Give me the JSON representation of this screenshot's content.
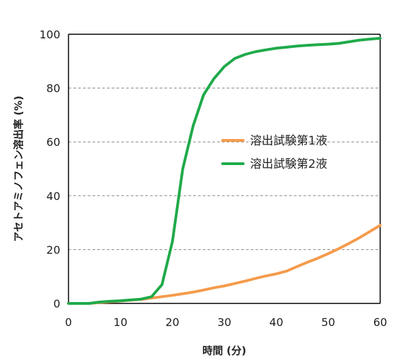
{
  "chart_data": {
    "type": "line",
    "title": "",
    "xlabel": "時間 (分)",
    "ylabel": "アセトアミノフェン溶出率 (%)",
    "xlim": [
      0,
      60
    ],
    "ylim": [
      0,
      100
    ],
    "x_ticks": [
      "0",
      "10",
      "20",
      "30",
      "40",
      "50",
      "60"
    ],
    "y_ticks": [
      "0",
      "20",
      "40",
      "60",
      "80",
      "100"
    ],
    "grid": "horizontal dashed",
    "legend_position": "center-right",
    "series": [
      {
        "name": "溶出試験第1液",
        "color": "#F59B4C",
        "x": [
          0,
          2,
          4,
          6,
          8,
          10,
          12,
          14,
          16,
          18,
          20,
          22,
          24,
          26,
          28,
          30,
          32,
          34,
          36,
          38,
          40,
          42,
          44,
          46,
          48,
          50,
          52,
          54,
          56,
          58,
          60
        ],
        "y": [
          0,
          0,
          0,
          0.3,
          0.6,
          0.9,
          1.2,
          1.5,
          2.0,
          2.5,
          3.0,
          3.6,
          4.2,
          5.0,
          5.8,
          6.5,
          7.4,
          8.3,
          9.3,
          10.2,
          11.0,
          12.0,
          13.7,
          15.3,
          16.8,
          18.5,
          20.3,
          22.3,
          24.4,
          26.7,
          29.0
        ]
      },
      {
        "name": "溶出試験第2液",
        "color": "#1FAA4A",
        "x": [
          0,
          2,
          4,
          6,
          8,
          10,
          12,
          14,
          16,
          18,
          20,
          22,
          24,
          26,
          28,
          30,
          32,
          34,
          36,
          38,
          40,
          42,
          44,
          46,
          48,
          50,
          52,
          54,
          56,
          58,
          60
        ],
        "y": [
          0,
          0,
          0,
          0.5,
          0.8,
          1.0,
          1.3,
          1.6,
          2.5,
          7.0,
          23.0,
          50.0,
          66.0,
          77.5,
          83.5,
          88.0,
          91.0,
          92.5,
          93.5,
          94.2,
          94.8,
          95.2,
          95.6,
          95.9,
          96.1,
          96.3,
          96.6,
          97.2,
          97.8,
          98.2,
          98.5
        ]
      }
    ]
  }
}
